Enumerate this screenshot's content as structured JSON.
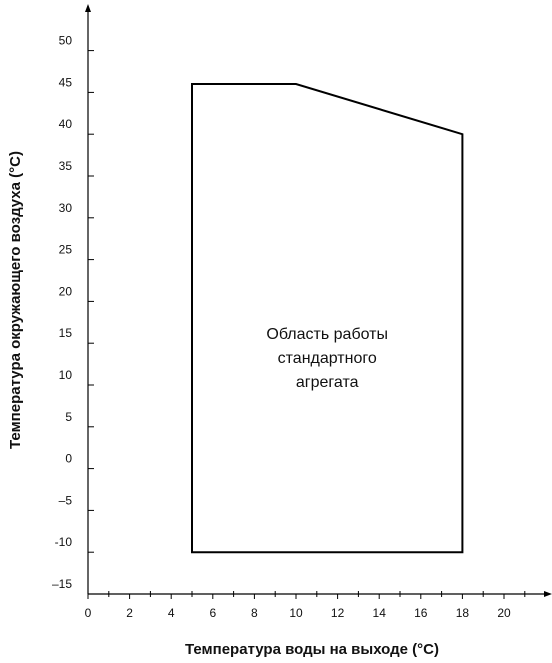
{
  "chart_data": {
    "type": "area",
    "title": "",
    "xlabel": "Температура воды на выходе (°C)",
    "ylabel": "Температура окружающего воздуха (°C)",
    "xlim": [
      0,
      22
    ],
    "ylim": [
      -15,
      55
    ],
    "x_ticks": [
      0,
      2,
      4,
      6,
      8,
      10,
      12,
      14,
      16,
      18,
      20
    ],
    "x_minor_ticks": [
      1,
      3,
      5,
      7,
      9,
      11,
      13,
      15,
      17,
      19,
      21
    ],
    "y_ticks": [
      -15,
      -10,
      -5,
      0,
      5,
      10,
      15,
      20,
      25,
      30,
      35,
      40,
      45,
      50
    ],
    "y_tick_labels": [
      "–15",
      "-10",
      "–5",
      "0",
      "5",
      "10",
      "15",
      "20",
      "25",
      "30",
      "35",
      "40",
      "45",
      "50"
    ],
    "grid": false,
    "legend": "none",
    "series": [
      {
        "x": [
          5,
          10,
          18,
          18,
          5
        ],
        "y": [
          46,
          46,
          40,
          -10,
          -10
        ],
        "closed": true,
        "fill": "none",
        "stroke": "#000000"
      }
    ],
    "annotations": [
      {
        "lines": [
          "Область работы",
          "стандартного",
          "агрегата"
        ],
        "x": 11.5,
        "y": 15.5
      }
    ]
  }
}
